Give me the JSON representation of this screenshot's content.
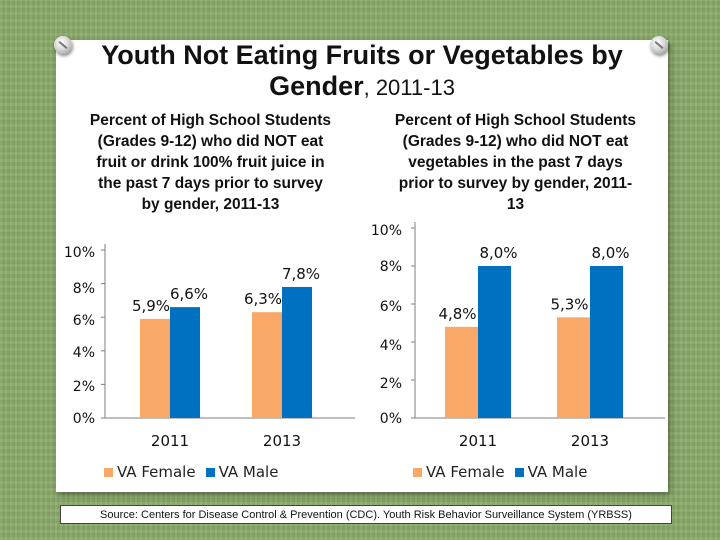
{
  "title": {
    "main": "Youth Not Eating Fruits or Vegetables by Gender",
    "sub": ", 2011-13"
  },
  "colors": {
    "female": "#f9a867",
    "male": "#0070c0"
  },
  "chart_data": [
    {
      "type": "bar",
      "title": "Percent of High School Students (Grades 9-12) who did NOT eat fruit or drink 100% fruit juice in the past 7 days prior to survey by gender, 2011-13",
      "categories": [
        "2011",
        "2013"
      ],
      "series": [
        {
          "name": "VA Female",
          "values": [
            5.9,
            6.3
          ],
          "labels": [
            "5,9%",
            "6,3%"
          ]
        },
        {
          "name": "VA Male",
          "values": [
            6.6,
            7.8
          ],
          "labels": [
            "6,6%",
            "7,8%"
          ]
        }
      ],
      "yticks": [
        "0%",
        "2%",
        "4%",
        "6%",
        "8%",
        "10%"
      ],
      "ylim": [
        0,
        10
      ],
      "legend": "bottom"
    },
    {
      "type": "bar",
      "title": "Percent of High School Students (Grades 9-12) who did NOT eat vegetables in the past 7 days prior to survey by gender, 2011-13",
      "categories": [
        "2011",
        "2013"
      ],
      "series": [
        {
          "name": "VA Female",
          "values": [
            4.8,
            5.3
          ],
          "labels": [
            "4,8%",
            "5,3%"
          ]
        },
        {
          "name": "VA Male",
          "values": [
            8.0,
            8.0
          ],
          "labels": [
            "8,0%",
            "8,0%"
          ]
        }
      ],
      "yticks": [
        "0%",
        "2%",
        "4%",
        "6%",
        "8%",
        "10%"
      ],
      "ylim": [
        0,
        10
      ],
      "legend": "bottom"
    }
  ],
  "source": "Source: Centers for Disease Control & Prevention (CDC). Youth Risk Behavior Surveillance System (YRBSS)"
}
